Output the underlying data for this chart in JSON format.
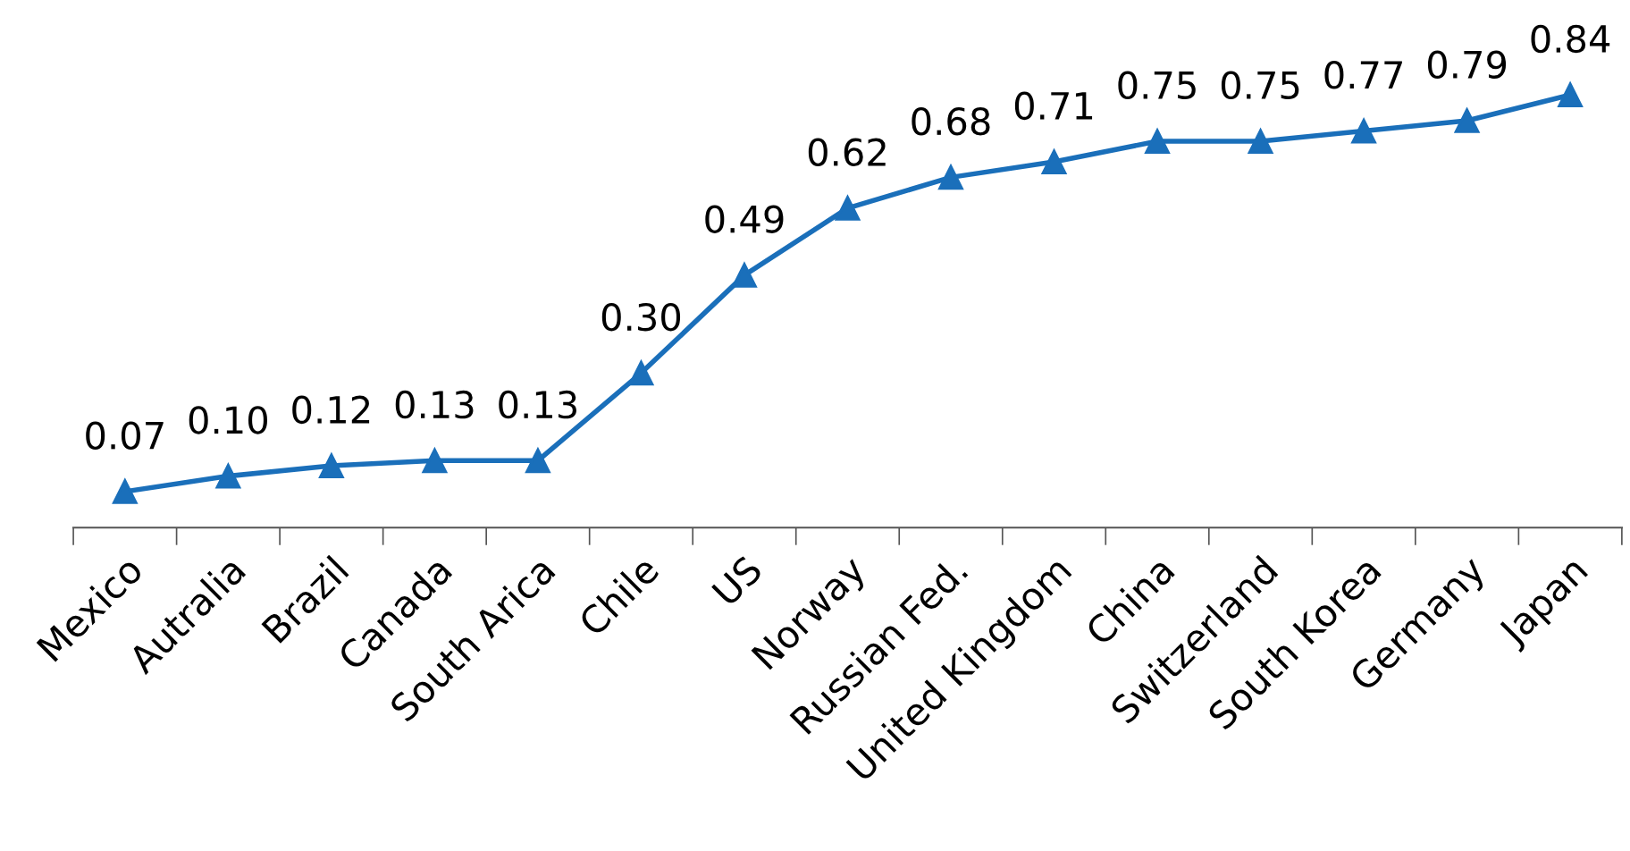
{
  "chart_data": {
    "type": "line",
    "categories": [
      "Mexico",
      "Autralia",
      "Brazil",
      "Canada",
      "South Arica",
      "Chile",
      "US",
      "Norway",
      "Russian Fed.",
      "United Kingdom",
      "China",
      "Switzerland",
      "South Korea",
      "Germany",
      "Japan"
    ],
    "series": [
      {
        "color": "#1a6fba",
        "values": [
          0.07,
          0.1,
          0.12,
          0.13,
          0.13,
          0.3,
          0.49,
          0.62,
          0.68,
          0.71,
          0.75,
          0.75,
          0.77,
          0.79,
          0.84
        ],
        "value_labels": [
          "0.07",
          "0.10",
          "0.12",
          "0.13",
          "0.13",
          "0.30",
          "0.49",
          "0.62",
          "0.68",
          "0.71",
          "0.75",
          "0.75",
          "0.77",
          "0.79",
          "0.84"
        ]
      }
    ],
    "marker": "triangle",
    "line_style": "solid",
    "grid": false,
    "legend": false,
    "tick_labels": "x"
  }
}
